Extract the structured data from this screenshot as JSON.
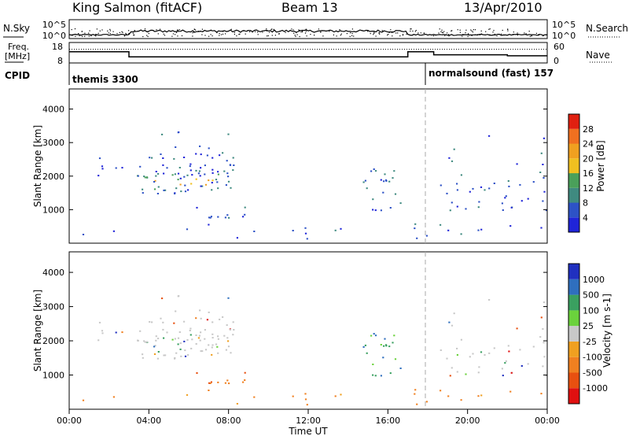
{
  "header": {
    "station": "King Salmon (fitACF)",
    "beam": "Beam 13",
    "date": "13/Apr/2010"
  },
  "side_labels": {
    "nsky": "N.Sky",
    "freq_line1": "Freq.",
    "freq_line2": "[MHz]",
    "cpid": "CPID",
    "nsearch": "N.Search",
    "nave": "Nave"
  },
  "cpid_segments": [
    {
      "label": "themis 3300"
    },
    {
      "label": "normalsound (fast) 157"
    }
  ],
  "colors": {
    "power_scale": [
      "#1f24d8",
      "#2d52c6",
      "#3f8a80",
      "#4aa05a",
      "#f0c020",
      "#f0a020",
      "#f07020",
      "#e02010"
    ],
    "velocity_scale": [
      "#2030c0",
      "#2f6fbe",
      "#3aa060",
      "#6bd23c",
      "#c8c8c8",
      "#f0a020",
      "#f08020",
      "#e85010",
      "#e01010"
    ]
  },
  "chart_data": [
    {
      "type": "line",
      "name": "noise-panel",
      "ylabel_left": "N.Sky",
      "ylabel_right": "N.Search",
      "y_ticks_left": [
        "10^5",
        "10^0"
      ],
      "y_ticks_right": [
        "10^5",
        "10^0"
      ]
    },
    {
      "type": "line",
      "name": "frequency-nave-panel",
      "ylabel_left": "Freq. [MHz]",
      "ylabel_right": "Nave",
      "y_ticks_left": [
        "18",
        "8"
      ],
      "y_ticks_right": [
        "60",
        "0"
      ],
      "freq_steps": [
        {
          "x": 0,
          "y": 13.5
        },
        {
          "x": 3,
          "y": 13.5
        },
        {
          "x": 3,
          "y": 11.0
        },
        {
          "x": 17.0,
          "y": 11.0
        },
        {
          "x": 17.0,
          "y": 13.5
        },
        {
          "x": 18.3,
          "y": 13.5
        },
        {
          "x": 18.3,
          "y": 12.0
        },
        {
          "x": 22.0,
          "y": 12.0
        },
        {
          "x": 22.0,
          "y": 11.5
        },
        {
          "x": 24.0,
          "y": 11.5
        }
      ],
      "nave_level": 40
    },
    {
      "type": "heatmap",
      "name": "power-panel",
      "ylabel": "Slant Range [km]",
      "colorbar_label": "Power [dB]",
      "ylim": [
        0,
        4600
      ],
      "xlim": [
        0,
        24
      ],
      "y_ticks": [
        1000,
        2000,
        3000,
        4000
      ],
      "colorbar_ticks": [
        "4",
        "8",
        "12",
        "16",
        "20",
        "24",
        "28"
      ],
      "regions": [
        {
          "x0": 3.3,
          "x1": 8.2,
          "y0": 1500,
          "y1": 2400,
          "weight": 0.8
        },
        {
          "x0": 1.0,
          "x1": 8.5,
          "y0": 2000,
          "y1": 2600,
          "weight": 0.3
        },
        {
          "x0": 4.5,
          "x1": 8.3,
          "y0": 2500,
          "y1": 3500,
          "weight": 0.2
        },
        {
          "x0": 5.8,
          "x1": 8.8,
          "y0": 750,
          "y1": 1100,
          "weight": 0.6
        },
        {
          "x0": 14.7,
          "x1": 16.6,
          "y0": 1000,
          "y1": 2300,
          "weight": 0.5
        },
        {
          "x0": 18.5,
          "x1": 24.0,
          "y0": 1000,
          "y1": 1800,
          "weight": 0.35
        },
        {
          "x0": 18.3,
          "x1": 24.0,
          "y0": 1800,
          "y1": 3500,
          "weight": 0.08
        },
        {
          "x0": 0.2,
          "x1": 24.0,
          "y0": 150,
          "y1": 600,
          "weight": 0.12
        }
      ]
    },
    {
      "type": "heatmap",
      "name": "velocity-panel",
      "ylabel": "Slant Range [km]",
      "colorbar_label": "Velocity [m s-1]",
      "ylim": [
        0,
        4600
      ],
      "xlim": [
        0,
        24
      ],
      "y_ticks": [
        1000,
        2000,
        3000,
        4000
      ],
      "colorbar_ticks": [
        "1000",
        "500",
        "100",
        "25",
        "-25",
        "-100",
        "-500",
        "-1000"
      ],
      "xlabel": "Time UT",
      "x_ticks": [
        "00:00",
        "04:00",
        "08:00",
        "12:00",
        "16:00",
        "20:00",
        "00:00"
      ]
    }
  ]
}
